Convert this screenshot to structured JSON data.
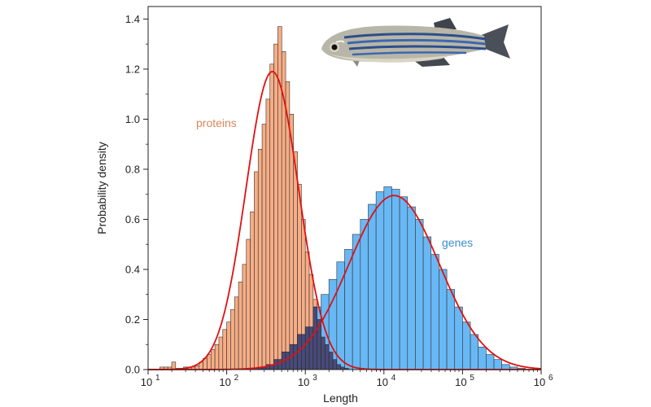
{
  "chart_data": {
    "type": "histogram",
    "title": "",
    "xlabel": "Length",
    "ylabel": "Probability density",
    "xscale": "log",
    "xlim_exponent": [
      1,
      6
    ],
    "ylim": [
      0,
      1.45
    ],
    "x_tick_base": "10",
    "x_tick_exponents": [
      "1",
      "2",
      "3",
      "4",
      "5",
      "6"
    ],
    "y_ticks": [
      "0.0",
      "0.2",
      "0.4",
      "0.6",
      "0.8",
      "1.0",
      "1.2",
      "1.4"
    ],
    "grid": false,
    "legend": "none",
    "annotations": [
      {
        "text": "proteins",
        "color": "#d9875a"
      },
      {
        "text": "genes",
        "color": "#3a8fd0"
      }
    ],
    "series": [
      {
        "color": "#f7ad85",
        "bin_width_log10": 0.05,
        "bin_start_log10": 1.15,
        "density": [
          0.01,
          0.01,
          0.01,
          0.03,
          0.005,
          0.005,
          0.01,
          0.01,
          0.01,
          0.015,
          0.03,
          0.045,
          0.06,
          0.08,
          0.1,
          0.13,
          0.16,
          0.19,
          0.24,
          0.29,
          0.35,
          0.42,
          0.52,
          0.63,
          0.79,
          0.88,
          0.98,
          1.08,
          1.22,
          1.3,
          1.37,
          1.27,
          1.15,
          1.02,
          0.87,
          0.74,
          0.6,
          0.47,
          0.38,
          0.28,
          0.2,
          0.13,
          0.1,
          0.07,
          0.04,
          0.02,
          0.01,
          0.005
        ],
        "fit_center_log10": 2.58,
        "fit_sigma_log10": 0.335,
        "fit_peak": 1.19
      },
      {
        "color": "#68b8f5",
        "bin_width_log10": 0.1,
        "bin_start_log10": 2.3,
        "density": [
          0.005,
          0.01,
          0.02,
          0.04,
          0.07,
          0.1,
          0.14,
          0.17,
          0.25,
          0.3,
          0.36,
          0.43,
          0.48,
          0.54,
          0.6,
          0.66,
          0.71,
          0.73,
          0.72,
          0.69,
          0.65,
          0.6,
          0.53,
          0.46,
          0.4,
          0.32,
          0.25,
          0.19,
          0.14,
          0.09,
          0.06,
          0.04,
          0.02,
          0.01,
          0.005
        ],
        "fit_center_log10": 4.13,
        "fit_sigma_log10": 0.575,
        "fit_peak": 0.695
      }
    ],
    "fit_color": "#e01010",
    "overlap_color": "#4a4a78"
  },
  "image": {
    "icon": "zebrafish-photo"
  }
}
